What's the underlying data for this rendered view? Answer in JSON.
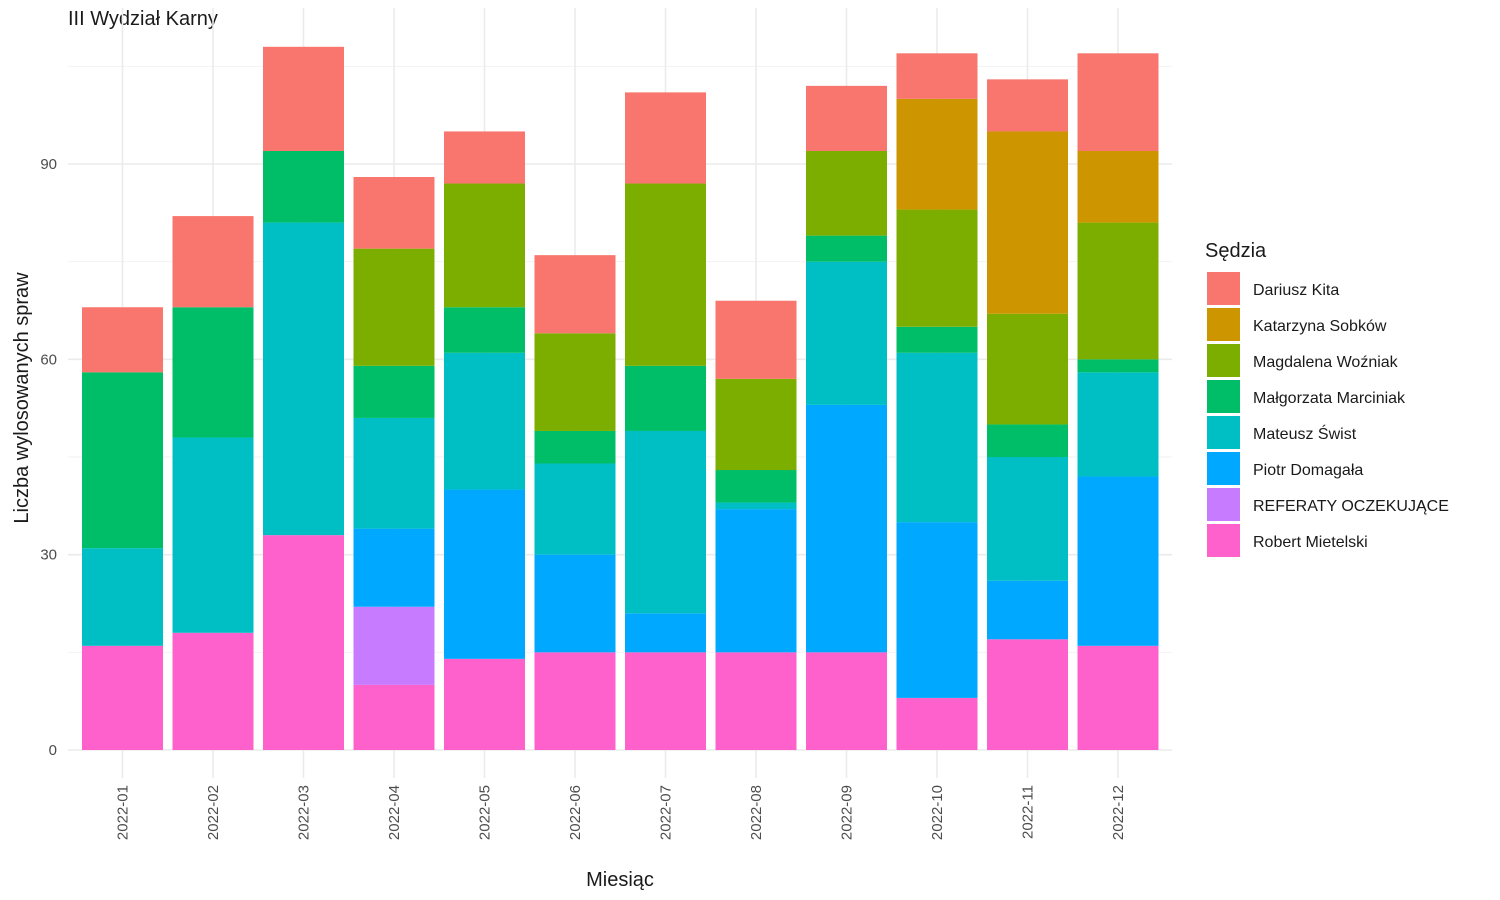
{
  "chart_data": {
    "type": "bar",
    "stacked": true,
    "title": "III Wydział Karny",
    "xlabel": "Miesiąc",
    "ylabel": "Liczba wylosowanych spraw",
    "ylim": [
      0,
      112
    ],
    "yticks": [
      0,
      30,
      60,
      90
    ],
    "grid": true,
    "legend_position": "right",
    "legend_title": "Sędzia",
    "categories": [
      "2022-01",
      "2022-02",
      "2022-03",
      "2022-04",
      "2022-05",
      "2022-06",
      "2022-07",
      "2022-08",
      "2022-09",
      "2022-10",
      "2022-11",
      "2022-12"
    ],
    "series": [
      {
        "name": "Dariusz Kita",
        "color": "#F8766D",
        "values": [
          10,
          14,
          16,
          11,
          8,
          12,
          14,
          12,
          10,
          7,
          8,
          15
        ]
      },
      {
        "name": "Katarzyna Sobków",
        "color": "#CD9600",
        "values": [
          0,
          0,
          0,
          0,
          0,
          0,
          0,
          0,
          0,
          17,
          28,
          11
        ]
      },
      {
        "name": "Magdalena Woźniak",
        "color": "#7CAE00",
        "values": [
          0,
          0,
          0,
          18,
          19,
          15,
          28,
          14,
          13,
          18,
          17,
          21
        ]
      },
      {
        "name": "Małgorzata Marciniak",
        "color": "#00BE67",
        "values": [
          27,
          20,
          11,
          8,
          7,
          5,
          10,
          5,
          4,
          4,
          5,
          2
        ]
      },
      {
        "name": "Mateusz Świst",
        "color": "#00BFC4",
        "values": [
          15,
          30,
          48,
          17,
          21,
          14,
          28,
          1,
          22,
          26,
          19,
          16
        ]
      },
      {
        "name": "Piotr Domagała",
        "color": "#00A9FF",
        "values": [
          0,
          0,
          0,
          12,
          26,
          15,
          6,
          22,
          38,
          27,
          9,
          26
        ]
      },
      {
        "name": "REFERATY OCZEKUJĄCE",
        "color": "#C77CFF",
        "values": [
          0,
          0,
          0,
          12,
          0,
          0,
          0,
          0,
          0,
          0,
          0,
          0
        ]
      },
      {
        "name": "Robert Mietelski",
        "color": "#FF61CC",
        "values": [
          16,
          18,
          33,
          10,
          14,
          15,
          15,
          15,
          15,
          8,
          17,
          16
        ]
      }
    ]
  }
}
